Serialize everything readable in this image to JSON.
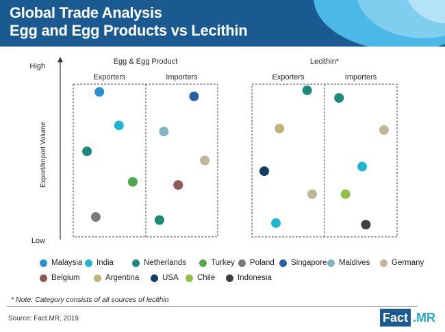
{
  "header": {
    "title_line1": "Global Trade Analysis",
    "title_line2": "Egg and Egg Products vs Lecithin",
    "background_color": "#1b5a91"
  },
  "chart_data": {
    "type": "scatter",
    "y_axis": {
      "label": "Export/Import Volume",
      "top_label": "High",
      "bottom_label": "Low"
    },
    "panels": [
      {
        "title": "Egg & Egg Product",
        "sections": [
          "Exporters",
          "Importers"
        ],
        "points": [
          {
            "country": "Malaysia",
            "section": "Exporters",
            "x": 0.36,
            "y": 0.95
          },
          {
            "country": "India",
            "section": "Exporters",
            "x": 0.63,
            "y": 0.73
          },
          {
            "country": "Netherlands",
            "section": "Exporters",
            "x": 0.19,
            "y": 0.56
          },
          {
            "country": "Turkey",
            "section": "Exporters",
            "x": 0.82,
            "y": 0.36
          },
          {
            "country": "Poland",
            "section": "Exporters",
            "x": 0.31,
            "y": 0.13
          },
          {
            "country": "Singapore",
            "section": "Importers",
            "x": 0.67,
            "y": 0.92
          },
          {
            "country": "Maldives",
            "section": "Importers",
            "x": 0.25,
            "y": 0.69
          },
          {
            "country": "Germany",
            "section": "Importers",
            "x": 0.82,
            "y": 0.5
          },
          {
            "country": "Belgium",
            "section": "Importers",
            "x": 0.45,
            "y": 0.34
          },
          {
            "country": "Netherlands",
            "section": "Importers",
            "x": 0.19,
            "y": 0.11
          }
        ]
      },
      {
        "title": "Lecithin*",
        "sections": [
          "Exporters",
          "Importers"
        ],
        "points": [
          {
            "country": "Netherlands",
            "section": "Exporters",
            "x": 0.76,
            "y": 0.96
          },
          {
            "country": "Argentina",
            "section": "Exporters",
            "x": 0.38,
            "y": 0.71
          },
          {
            "country": "USA",
            "section": "Exporters",
            "x": 0.17,
            "y": 0.43
          },
          {
            "country": "Germany",
            "section": "Exporters",
            "x": 0.83,
            "y": 0.28
          },
          {
            "country": "India",
            "section": "Exporters",
            "x": 0.33,
            "y": 0.09
          },
          {
            "country": "Netherlands",
            "section": "Importers",
            "x": 0.2,
            "y": 0.91
          },
          {
            "country": "Germany",
            "section": "Importers",
            "x": 0.82,
            "y": 0.7
          },
          {
            "country": "India",
            "section": "Importers",
            "x": 0.52,
            "y": 0.46
          },
          {
            "country": "Chile",
            "section": "Importers",
            "x": 0.29,
            "y": 0.28
          },
          {
            "country": "Indonesia",
            "section": "Importers",
            "x": 0.57,
            "y": 0.08
          }
        ]
      }
    ],
    "legend": [
      {
        "name": "Malaysia",
        "color": "#2a8fd0"
      },
      {
        "name": "India",
        "color": "#22b5cf"
      },
      {
        "name": "Netherlands",
        "color": "#1c8a78"
      },
      {
        "name": "Turkey",
        "color": "#4ea849"
      },
      {
        "name": "Poland",
        "color": "#7a7a7a"
      },
      {
        "name": "Singapore",
        "color": "#2860a8"
      },
      {
        "name": "Maldives",
        "color": "#85b5c3"
      },
      {
        "name": "Germany",
        "color": "#c3b59c"
      },
      {
        "name": "Belgium",
        "color": "#8b5a55"
      },
      {
        "name": "Argentina",
        "color": "#bcb57a"
      },
      {
        "name": "USA",
        "color": "#123d66"
      },
      {
        "name": "Chile",
        "color": "#8cc047"
      },
      {
        "name": "Indonesia",
        "color": "#3f3f3f"
      }
    ]
  },
  "note": "* Note: Category consists of all sources of lecithin",
  "source": "Source: Fact.MR, 2019",
  "logo": {
    "part1": "Fact",
    "part2": ".MR"
  }
}
